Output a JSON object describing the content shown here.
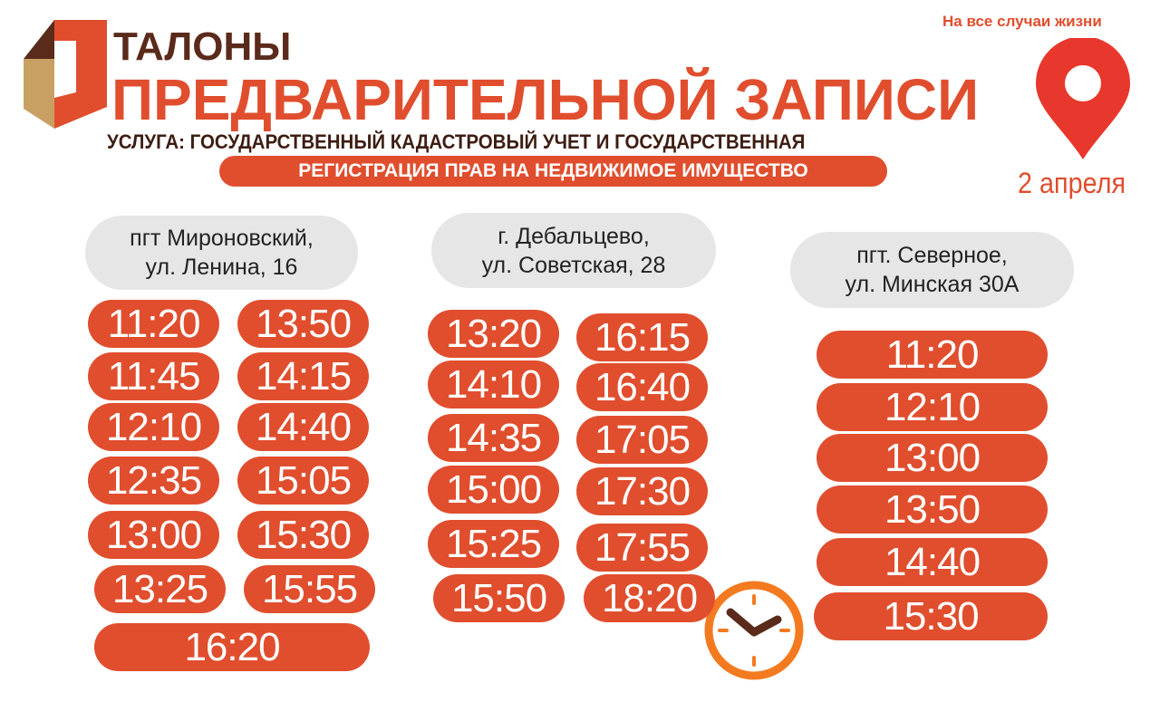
{
  "header": {
    "title_line1": "ТАЛОНЫ",
    "title_line2": "ПРЕДВАРИТЕЛЬНОЙ ЗАПИСИ",
    "service_line1": "УСЛУГА: ГОСУДАРСТВЕННЫЙ КАДАСТРОВЫЙ УЧЕТ И ГОСУДАРСТВЕННАЯ",
    "service_line2": "РЕГИСТРАЦИЯ ПРАВ НА НЕДВИЖИМОЕ ИМУЩЕСТВО",
    "slogan": "На все случаи жизни",
    "date": "2 апреля",
    "icons": [
      "logo-mfc",
      "location-pin-icon",
      "clock-icon"
    ]
  },
  "colors": {
    "accent": "#e04e2e",
    "dark": "#5a2a1b",
    "gray": "#e6e6e6",
    "clock": "#f47a20"
  },
  "locations": [
    {
      "address_line1": "пгт Мироновский,",
      "address_line2": "ул. Ленина, 16",
      "times": [
        "11:20",
        "13:50",
        "11:45",
        "14:15",
        "12:10",
        "14:40",
        "12:35",
        "15:05",
        "13:00",
        "15:30",
        "13:25",
        "15:55",
        "16:20"
      ]
    },
    {
      "address_line1": "г. Дебальцево,",
      "address_line2": "ул. Советская, 28",
      "times": [
        "13:20",
        "16:15",
        "14:10",
        "16:40",
        "14:35",
        "17:05",
        "15:00",
        "17:30",
        "15:25",
        "17:55",
        "15:50",
        "18:20"
      ]
    },
    {
      "address_line1": "пгт. Северное,",
      "address_line2": "ул. Минская 30А",
      "times": [
        "11:20",
        "12:10",
        "13:00",
        "13:50",
        "14:40",
        "15:30"
      ]
    }
  ]
}
